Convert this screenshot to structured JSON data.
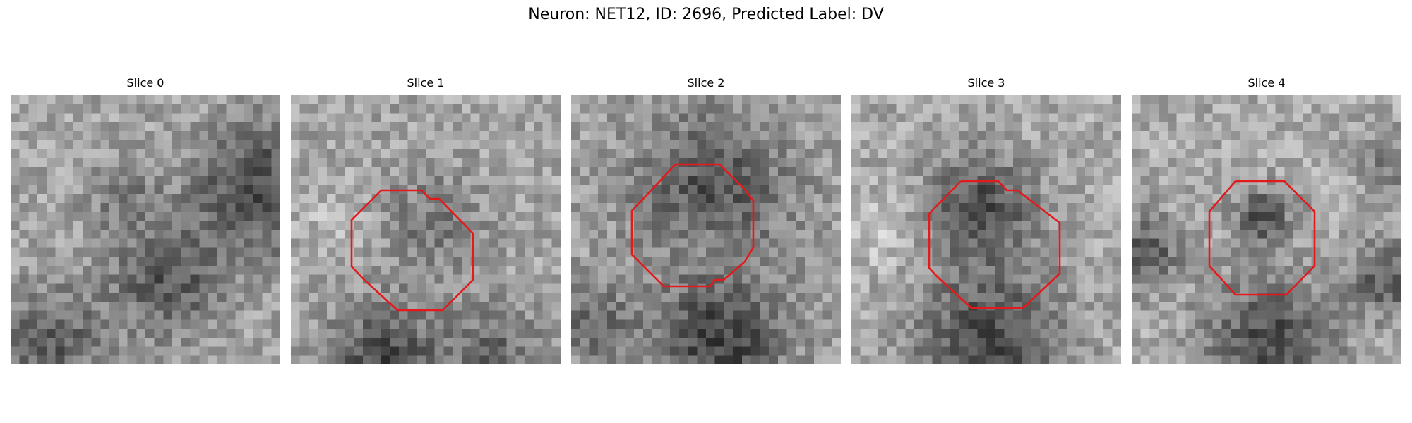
{
  "figure": {
    "title": "Neuron: NET12, ID: 2696, Predicted Label: DV"
  },
  "roi_color": "#e31a1c",
  "panels": [
    {
      "title": "Slice 0",
      "has_roi": false,
      "image": "grayscale-em-patch"
    },
    {
      "title": "Slice 1",
      "has_roi": true,
      "image": "grayscale-em-patch"
    },
    {
      "title": "Slice 2",
      "has_roi": true,
      "image": "grayscale-em-patch"
    },
    {
      "title": "Slice 3",
      "has_roi": true,
      "image": "grayscale-em-patch"
    },
    {
      "title": "Slice 4",
      "has_roi": true,
      "image": "grayscale-em-patch"
    }
  ]
}
